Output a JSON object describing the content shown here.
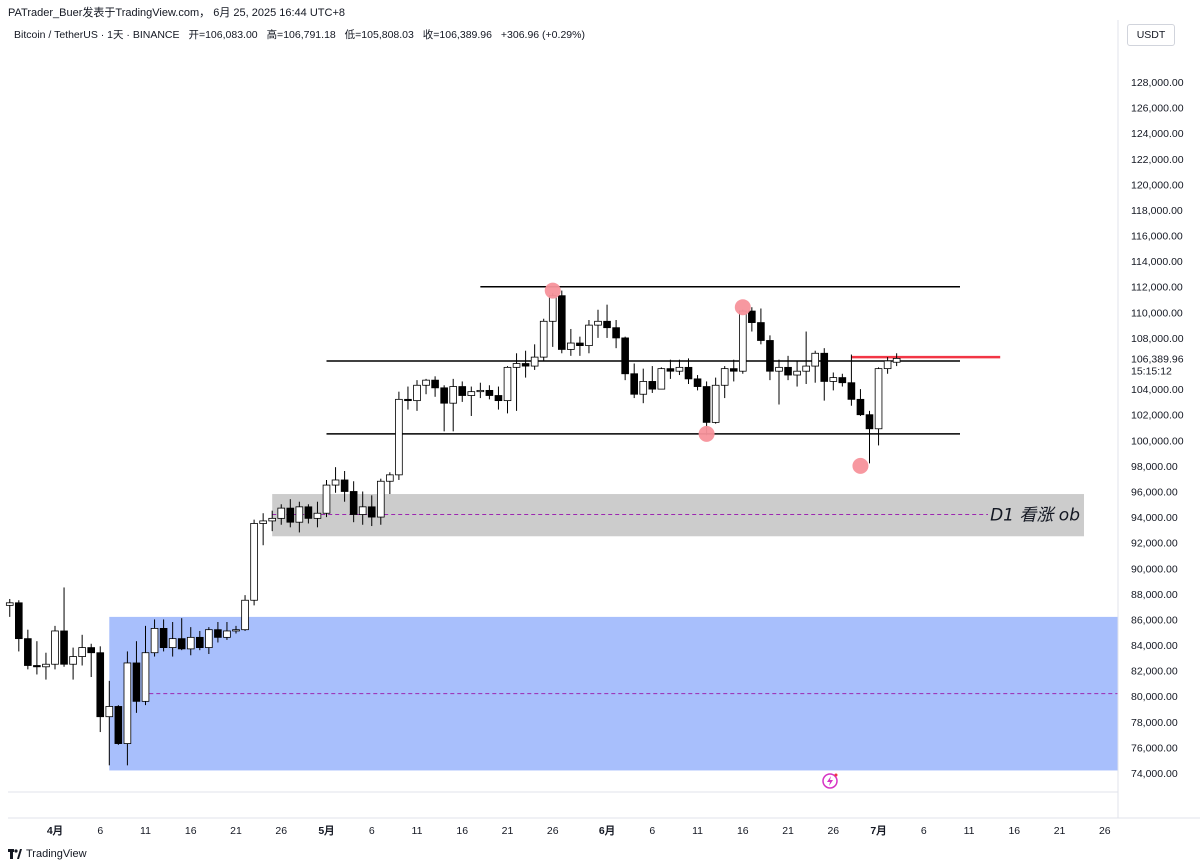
{
  "header": {
    "publish_line": "PATrader_Buer发表于TradingView.com， 6月 25, 2025 16:44 UTC+8"
  },
  "symbol": {
    "name": "Bitcoin / TetherUS · 1天 · BINANCE",
    "open": "开=106,083.00",
    "high": "高=106,791.18",
    "low": "低=105,808.03",
    "close": "收=106,389.96",
    "change": "+306.96 (+0.29%)"
  },
  "currency": "USDT",
  "footer": {
    "logo_icon": "tradingview-logo-icon",
    "brand": "TradingView"
  },
  "colors": {
    "up_body": "#ffffff",
    "down_body": "#000000",
    "resistance_line": "#f23645",
    "support_marker": "#f7929b",
    "ob_zone": "#cccccc",
    "blue_zone": "#a8bffc",
    "midline": "#9c27b0"
  },
  "chart_data": {
    "type": "candlestick",
    "y_axis": {
      "ticks": [
        "128,000.00",
        "126,000.00",
        "124,000.00",
        "122,000.00",
        "120,000.00",
        "118,000.00",
        "116,000.00",
        "114,000.00",
        "112,000.00",
        "110,000.00",
        "108,000.00",
        "106,000.00",
        "104,000.00",
        "102,000.00",
        "100,000.00",
        "98,000.00",
        "96,000.00",
        "94,000.00",
        "92,000.00",
        "90,000.00",
        "88,000.00",
        "86,000.00",
        "84,000.00",
        "82,000.00",
        "80,000.00",
        "78,000.00",
        "76,000.00",
        "74,000.00"
      ],
      "tick_values": [
        128000,
        126000,
        124000,
        122000,
        120000,
        118000,
        116000,
        114000,
        112000,
        110000,
        108000,
        106000,
        104000,
        102000,
        100000,
        98000,
        96000,
        94000,
        92000,
        90000,
        88000,
        86000,
        84000,
        82000,
        80000,
        78000,
        76000,
        74000
      ],
      "range": [
        73000,
        130000
      ]
    },
    "x_axis": {
      "labels": [
        "4月",
        "6",
        "11",
        "16",
        "21",
        "26",
        "5月",
        "6",
        "11",
        "16",
        "21",
        "26",
        "6月",
        "6",
        "11",
        "16",
        "21",
        "26",
        "7月",
        "6",
        "11",
        "16",
        "21",
        "26"
      ],
      "day_index": [
        0,
        5,
        10,
        15,
        20,
        25,
        30,
        35,
        40,
        45,
        50,
        55,
        61,
        66,
        71,
        76,
        81,
        86,
        91,
        96,
        101,
        106,
        111,
        116
      ]
    },
    "last_price": {
      "value": 106389.96,
      "label": "106,389.96",
      "countdown": "15:15:12"
    },
    "candles": [
      {
        "d": -5,
        "o": 87100,
        "h": 87600,
        "l": 86200,
        "c": 87300
      },
      {
        "d": -4,
        "o": 87300,
        "h": 87500,
        "l": 83500,
        "c": 84500
      },
      {
        "d": -3,
        "o": 84500,
        "h": 85200,
        "l": 82100,
        "c": 82400
      },
      {
        "d": -2,
        "o": 82400,
        "h": 84300,
        "l": 81700,
        "c": 82300
      },
      {
        "d": -1,
        "o": 82300,
        "h": 83400,
        "l": 81300,
        "c": 82500
      },
      {
        "d": 0,
        "o": 82500,
        "h": 85500,
        "l": 82100,
        "c": 85100
      },
      {
        "d": 1,
        "o": 85100,
        "h": 88500,
        "l": 82300,
        "c": 82500
      },
      {
        "d": 2,
        "o": 82500,
        "h": 83800,
        "l": 81300,
        "c": 83100
      },
      {
        "d": 3,
        "o": 83100,
        "h": 84800,
        "l": 82400,
        "c": 83800
      },
      {
        "d": 4,
        "o": 83800,
        "h": 84100,
        "l": 81500,
        "c": 83400
      },
      {
        "d": 5,
        "o": 83400,
        "h": 83900,
        "l": 77200,
        "c": 78400
      },
      {
        "d": 6,
        "o": 78400,
        "h": 81200,
        "l": 74600,
        "c": 79200
      },
      {
        "d": 7,
        "o": 79200,
        "h": 79300,
        "l": 76200,
        "c": 76300
      },
      {
        "d": 8,
        "o": 76300,
        "h": 83500,
        "l": 74600,
        "c": 82600
      },
      {
        "d": 9,
        "o": 82600,
        "h": 84300,
        "l": 78700,
        "c": 79600
      },
      {
        "d": 10,
        "o": 79600,
        "h": 85500,
        "l": 79300,
        "c": 83400
      },
      {
        "d": 11,
        "o": 83400,
        "h": 86000,
        "l": 83100,
        "c": 85300
      },
      {
        "d": 12,
        "o": 85300,
        "h": 86000,
        "l": 83500,
        "c": 83800
      },
      {
        "d": 13,
        "o": 83800,
        "h": 85800,
        "l": 83100,
        "c": 84500
      },
      {
        "d": 14,
        "o": 84500,
        "h": 86100,
        "l": 83600,
        "c": 83700
      },
      {
        "d": 15,
        "o": 83700,
        "h": 85400,
        "l": 83200,
        "c": 84600
      },
      {
        "d": 16,
        "o": 84600,
        "h": 85100,
        "l": 83600,
        "c": 83800
      },
      {
        "d": 17,
        "o": 83800,
        "h": 85400,
        "l": 83300,
        "c": 85200
      },
      {
        "d": 18,
        "o": 85200,
        "h": 85800,
        "l": 84200,
        "c": 84600
      },
      {
        "d": 19,
        "o": 84600,
        "h": 85800,
        "l": 84400,
        "c": 85100
      },
      {
        "d": 20,
        "o": 85100,
        "h": 85500,
        "l": 84900,
        "c": 85200
      },
      {
        "d": 21,
        "o": 85200,
        "h": 87900,
        "l": 85100,
        "c": 87500
      },
      {
        "d": 22,
        "o": 87500,
        "h": 93800,
        "l": 87100,
        "c": 93500
      },
      {
        "d": 23,
        "o": 93500,
        "h": 94300,
        "l": 91800,
        "c": 93700
      },
      {
        "d": 24,
        "o": 93700,
        "h": 94500,
        "l": 92900,
        "c": 93900
      },
      {
        "d": 25,
        "o": 93900,
        "h": 95000,
        "l": 93400,
        "c": 94700
      },
      {
        "d": 26,
        "o": 94700,
        "h": 95400,
        "l": 93200,
        "c": 93600
      },
      {
        "d": 27,
        "o": 93600,
        "h": 95200,
        "l": 92800,
        "c": 94800
      },
      {
        "d": 28,
        "o": 94800,
        "h": 95000,
        "l": 93500,
        "c": 93900
      },
      {
        "d": 29,
        "o": 93900,
        "h": 95200,
        "l": 93200,
        "c": 94300
      },
      {
        "d": 30,
        "o": 94300,
        "h": 96900,
        "l": 94000,
        "c": 96500
      },
      {
        "d": 31,
        "o": 96500,
        "h": 97900,
        "l": 95900,
        "c": 96900
      },
      {
        "d": 32,
        "o": 96900,
        "h": 97600,
        "l": 95200,
        "c": 96000
      },
      {
        "d": 33,
        "o": 96000,
        "h": 96800,
        "l": 93600,
        "c": 94200
      },
      {
        "d": 34,
        "o": 94200,
        "h": 96000,
        "l": 93400,
        "c": 94800
      },
      {
        "d": 35,
        "o": 94800,
        "h": 95700,
        "l": 93300,
        "c": 94000
      },
      {
        "d": 36,
        "o": 94000,
        "h": 97000,
        "l": 93400,
        "c": 96800
      },
      {
        "d": 37,
        "o": 96800,
        "h": 97500,
        "l": 95800,
        "c": 97300
      },
      {
        "d": 38,
        "o": 97300,
        "h": 103800,
        "l": 96900,
        "c": 103200
      },
      {
        "d": 39,
        "o": 103200,
        "h": 104200,
        "l": 102400,
        "c": 103100
      },
      {
        "d": 40,
        "o": 103100,
        "h": 104700,
        "l": 102300,
        "c": 104300
      },
      {
        "d": 41,
        "o": 104300,
        "h": 104800,
        "l": 103600,
        "c": 104700
      },
      {
        "d": 42,
        "o": 104700,
        "h": 105000,
        "l": 103400,
        "c": 104100
      },
      {
        "d": 43,
        "o": 104100,
        "h": 104300,
        "l": 100700,
        "c": 102900
      },
      {
        "d": 44,
        "o": 102900,
        "h": 104800,
        "l": 100700,
        "c": 104200
      },
      {
        "d": 45,
        "o": 104200,
        "h": 104600,
        "l": 103000,
        "c": 103500
      },
      {
        "d": 46,
        "o": 103500,
        "h": 104200,
        "l": 101900,
        "c": 103800
      },
      {
        "d": 47,
        "o": 103800,
        "h": 104500,
        "l": 103300,
        "c": 103900
      },
      {
        "d": 48,
        "o": 103900,
        "h": 104300,
        "l": 103200,
        "c": 103500
      },
      {
        "d": 49,
        "o": 103500,
        "h": 104200,
        "l": 102400,
        "c": 103100
      },
      {
        "d": 50,
        "o": 103100,
        "h": 105800,
        "l": 102100,
        "c": 105700
      },
      {
        "d": 51,
        "o": 105700,
        "h": 106800,
        "l": 102300,
        "c": 106000
      },
      {
        "d": 52,
        "o": 106000,
        "h": 107000,
        "l": 104900,
        "c": 105800
      },
      {
        "d": 53,
        "o": 105800,
        "h": 107500,
        "l": 105500,
        "c": 106500
      },
      {
        "d": 54,
        "o": 106500,
        "h": 109500,
        "l": 106200,
        "c": 109300
      },
      {
        "d": 55,
        "o": 109300,
        "h": 111500,
        "l": 107300,
        "c": 111300
      },
      {
        "d": 56,
        "o": 111300,
        "h": 111700,
        "l": 106800,
        "c": 107100
      },
      {
        "d": 57,
        "o": 107100,
        "h": 108700,
        "l": 106600,
        "c": 107600
      },
      {
        "d": 58,
        "o": 107600,
        "h": 108100,
        "l": 106600,
        "c": 107400
      },
      {
        "d": 59,
        "o": 107400,
        "h": 109400,
        "l": 106800,
        "c": 109000
      },
      {
        "d": 60,
        "o": 109000,
        "h": 110200,
        "l": 108000,
        "c": 109300
      },
      {
        "d": 61,
        "o": 109300,
        "h": 110600,
        "l": 108000,
        "c": 108800
      },
      {
        "d": 62,
        "o": 108800,
        "h": 109400,
        "l": 107200,
        "c": 108000
      },
      {
        "d": 63,
        "o": 108000,
        "h": 108100,
        "l": 104700,
        "c": 105200
      },
      {
        "d": 64,
        "o": 105200,
        "h": 106000,
        "l": 103300,
        "c": 103600
      },
      {
        "d": 65,
        "o": 103600,
        "h": 105600,
        "l": 102900,
        "c": 104600
      },
      {
        "d": 66,
        "o": 104600,
        "h": 105800,
        "l": 103700,
        "c": 104000
      },
      {
        "d": 67,
        "o": 104000,
        "h": 105700,
        "l": 104000,
        "c": 105600
      },
      {
        "d": 68,
        "o": 105600,
        "h": 106300,
        "l": 104800,
        "c": 105400
      },
      {
        "d": 69,
        "o": 105400,
        "h": 106300,
        "l": 105100,
        "c": 105700
      },
      {
        "d": 70,
        "o": 105700,
        "h": 106400,
        "l": 104400,
        "c": 104800
      },
      {
        "d": 71,
        "o": 104800,
        "h": 105100,
        "l": 103900,
        "c": 104200
      },
      {
        "d": 72,
        "o": 104200,
        "h": 104600,
        "l": 100400,
        "c": 101400
      },
      {
        "d": 73,
        "o": 101400,
        "h": 104900,
        "l": 101300,
        "c": 104300
      },
      {
        "d": 74,
        "o": 104300,
        "h": 105800,
        "l": 103300,
        "c": 105600
      },
      {
        "d": 75,
        "o": 105600,
        "h": 106300,
        "l": 104600,
        "c": 105400
      },
      {
        "d": 76,
        "o": 105400,
        "h": 110200,
        "l": 105200,
        "c": 110100
      },
      {
        "d": 77,
        "o": 110100,
        "h": 110400,
        "l": 108500,
        "c": 109200
      },
      {
        "d": 78,
        "o": 109200,
        "h": 110300,
        "l": 107500,
        "c": 107800
      },
      {
        "d": 79,
        "o": 107800,
        "h": 108200,
        "l": 104700,
        "c": 105400
      },
      {
        "d": 80,
        "o": 105400,
        "h": 106300,
        "l": 102800,
        "c": 105700
      },
      {
        "d": 81,
        "o": 105700,
        "h": 106600,
        "l": 104700,
        "c": 105100
      },
      {
        "d": 82,
        "o": 105100,
        "h": 106200,
        "l": 104200,
        "c": 105400
      },
      {
        "d": 83,
        "o": 105400,
        "h": 108500,
        "l": 104400,
        "c": 105800
      },
      {
        "d": 84,
        "o": 105800,
        "h": 107000,
        "l": 104500,
        "c": 106800
      },
      {
        "d": 85,
        "o": 106800,
        "h": 107200,
        "l": 103100,
        "c": 104600
      },
      {
        "d": 86,
        "o": 104600,
        "h": 105300,
        "l": 103900,
        "c": 104900
      },
      {
        "d": 87,
        "o": 104900,
        "h": 105200,
        "l": 104200,
        "c": 104500
      },
      {
        "d": 88,
        "o": 104500,
        "h": 106700,
        "l": 102700,
        "c": 103200
      },
      {
        "d": 89,
        "o": 103200,
        "h": 104000,
        "l": 101900,
        "c": 102000
      },
      {
        "d": 90,
        "o": 102000,
        "h": 102300,
        "l": 98200,
        "c": 100900
      },
      {
        "d": 91,
        "o": 100900,
        "h": 105700,
        "l": 99600,
        "c": 105600
      },
      {
        "d": 92,
        "o": 105600,
        "h": 106500,
        "l": 105200,
        "c": 106200
      },
      {
        "d": 93,
        "o": 106100,
        "h": 106800,
        "l": 105800,
        "c": 106400
      }
    ],
    "annotations": {
      "range_lines": [
        {
          "price": 112000,
          "from_day": 47,
          "to_day": 100
        },
        {
          "price": 106200,
          "from_day": 30,
          "to_day": 100
        },
        {
          "price": 100500,
          "from_day": 30,
          "to_day": 100
        }
      ],
      "resistance_line": {
        "price": 106500,
        "from_day": 88,
        "to_day": 104
      },
      "markers": [
        {
          "day": 55,
          "price": 111700
        },
        {
          "day": 72,
          "price": 100500
        },
        {
          "day": 76,
          "price": 110400
        },
        {
          "day": 89,
          "price": 98000
        }
      ],
      "ob_zone": {
        "top": 95800,
        "bottom": 92500,
        "mid": 94200,
        "from_day": 24,
        "to_day": 118,
        "label": "D1 看涨 ob"
      },
      "blue_zone": {
        "top": 86200,
        "bottom": 74200,
        "mid": 80200,
        "from_day": 6,
        "to_day": 130
      }
    }
  }
}
